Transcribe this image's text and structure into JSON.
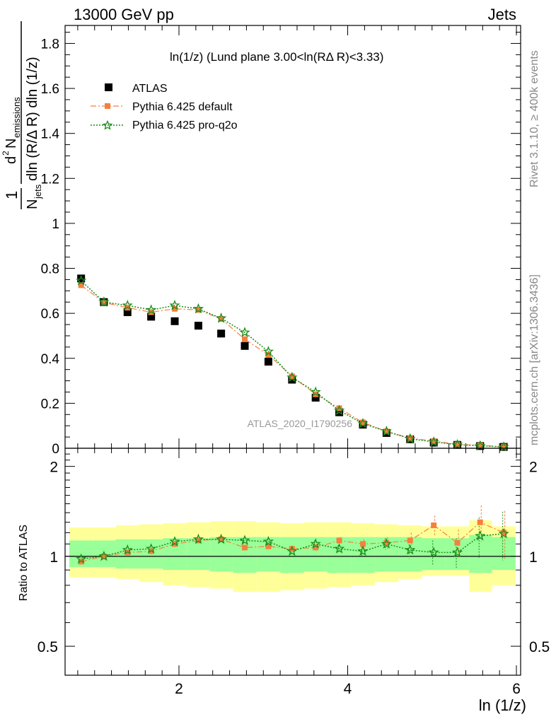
{
  "header": {
    "left": "13000 GeV pp",
    "right": "Jets"
  },
  "side_labels": {
    "rivet": "Rivet 3.1.10, ≥ 400k events",
    "mcplots": "mcplots.cern.ch [arXiv:1306.3436]"
  },
  "main_title": "ln(1/z) (Lund plane 3.00<ln(RΔ R)<3.33)",
  "watermark": "ATLAS_2020_I1790256",
  "ylabel_main": "1/N_jets d²N_emissions / dln(R/ΔR) dln(1/z)",
  "ylabel_ratio": "Ratio to ATLAS",
  "xlabel": "ln (1/z)",
  "legend": {
    "atlas": "ATLAS",
    "default": "Pythia 6.425 default",
    "proq2o": "Pythia 6.425 pro-q2o"
  },
  "colors": {
    "data": "#000000",
    "default": "#f5803e",
    "proq2o": "#1a8c1a",
    "band_inner": "#99ff99",
    "band_outer": "#ffff99"
  },
  "chart_data": [
    {
      "type": "scatter",
      "panel": "main",
      "title": "ln(1/z) (Lund plane 3.00<ln(RΔ R)<3.33)",
      "xlabel": "",
      "ylabel": "1/N_jets d²N_emissions / dln(R/ΔR) dln(1/z)",
      "xlim": [
        0.65,
        6.05
      ],
      "ylim": [
        0,
        1.88
      ],
      "x_ticks": [
        2,
        4,
        6
      ],
      "y_ticks": [
        0,
        0.2,
        0.4,
        0.6,
        0.8,
        1,
        1.2,
        1.4,
        1.6,
        1.8
      ],
      "y_tick_labels": [
        "0",
        "0.2",
        "0.4",
        "0.6",
        "0.8",
        "1",
        "1.2",
        "1.4",
        "1.6",
        "1.8"
      ],
      "x": [
        0.84,
        1.11,
        1.39,
        1.67,
        1.95,
        2.23,
        2.5,
        2.78,
        3.06,
        3.34,
        3.62,
        3.9,
        4.18,
        4.46,
        4.74,
        5.02,
        5.3,
        5.57,
        5.85
      ],
      "series": [
        {
          "name": "ATLAS",
          "marker": "square",
          "values": [
            0.755,
            0.65,
            0.605,
            0.585,
            0.565,
            0.545,
            0.51,
            0.455,
            0.385,
            0.305,
            0.225,
            0.16,
            0.105,
            0.068,
            0.04,
            0.025,
            0.015,
            0.01,
            0.006
          ]
        },
        {
          "name": "Pythia 6.425 default",
          "marker": "filled-square",
          "values": [
            0.725,
            0.648,
            0.625,
            0.605,
            0.62,
            0.615,
            0.575,
            0.485,
            0.415,
            0.32,
            0.24,
            0.178,
            0.115,
            0.075,
            0.045,
            0.032,
            0.017,
            0.013,
            0.007
          ]
        },
        {
          "name": "Pythia 6.425 pro-q2o",
          "marker": "open-star",
          "values": [
            0.745,
            0.65,
            0.635,
            0.615,
            0.635,
            0.62,
            0.578,
            0.515,
            0.43,
            0.315,
            0.25,
            0.168,
            0.11,
            0.075,
            0.042,
            0.028,
            0.016,
            0.011,
            0.006
          ]
        }
      ]
    },
    {
      "type": "scatter",
      "panel": "ratio",
      "ylabel": "Ratio to ATLAS",
      "xlabel": "ln (1/z)",
      "xlim": [
        0.65,
        6.05
      ],
      "ylim": [
        0.4,
        2.3
      ],
      "log_y": true,
      "y_ticks": [
        0.5,
        1,
        2
      ],
      "y_tick_labels": [
        "0.5",
        "1",
        "2"
      ],
      "x_ticks": [
        2,
        4,
        6
      ],
      "x_tick_labels": [
        "2",
        "4",
        "6"
      ],
      "bin_edges": [
        0.7,
        0.98,
        1.25,
        1.53,
        1.81,
        2.09,
        2.37,
        2.64,
        2.92,
        3.2,
        3.48,
        3.76,
        4.04,
        4.32,
        4.6,
        4.88,
        5.16,
        5.44,
        5.71,
        5.99
      ],
      "band_inner_lo": [
        0.92,
        0.92,
        0.91,
        0.91,
        0.9,
        0.9,
        0.89,
        0.88,
        0.89,
        0.88,
        0.89,
        0.88,
        0.88,
        0.89,
        0.89,
        0.9,
        0.9,
        0.88,
        0.9
      ],
      "band_inner_hi": [
        1.13,
        1.13,
        1.14,
        1.14,
        1.15,
        1.15,
        1.16,
        1.16,
        1.16,
        1.16,
        1.16,
        1.16,
        1.16,
        1.16,
        1.16,
        1.15,
        1.15,
        1.18,
        1.16
      ],
      "band_outer_lo": [
        0.85,
        0.85,
        0.84,
        0.82,
        0.8,
        0.79,
        0.78,
        0.76,
        0.76,
        0.77,
        0.78,
        0.79,
        0.8,
        0.82,
        0.84,
        0.86,
        0.86,
        0.76,
        0.8
      ],
      "band_outer_hi": [
        1.25,
        1.25,
        1.27,
        1.28,
        1.29,
        1.3,
        1.31,
        1.31,
        1.3,
        1.29,
        1.3,
        1.3,
        1.29,
        1.28,
        1.27,
        1.26,
        1.26,
        1.32,
        1.26
      ],
      "x": [
        0.84,
        1.11,
        1.39,
        1.67,
        1.95,
        2.23,
        2.5,
        2.78,
        3.06,
        3.34,
        3.62,
        3.9,
        4.18,
        4.46,
        4.74,
        5.02,
        5.3,
        5.57,
        5.85
      ],
      "series": [
        {
          "name": "Pythia 6.425 default",
          "marker": "filled-square",
          "values": [
            0.96,
            1.0,
            1.03,
            1.04,
            1.1,
            1.13,
            1.14,
            1.07,
            1.08,
            1.06,
            1.07,
            1.13,
            1.1,
            1.11,
            1.13,
            1.27,
            1.11,
            1.3,
            1.2
          ],
          "err": [
            0.02,
            0.02,
            0.02,
            0.02,
            0.02,
            0.02,
            0.02,
            0.02,
            0.02,
            0.02,
            0.03,
            0.03,
            0.04,
            0.05,
            0.07,
            0.1,
            0.12,
            0.18,
            0.22
          ]
        },
        {
          "name": "Pythia 6.425 pro-q2o",
          "marker": "open-star",
          "values": [
            0.98,
            1.0,
            1.05,
            1.06,
            1.12,
            1.14,
            1.14,
            1.13,
            1.12,
            1.04,
            1.1,
            1.06,
            1.04,
            1.1,
            1.05,
            1.03,
            1.03,
            1.17,
            1.19
          ],
          "err": [
            0.02,
            0.02,
            0.02,
            0.02,
            0.02,
            0.02,
            0.02,
            0.02,
            0.02,
            0.02,
            0.03,
            0.03,
            0.04,
            0.05,
            0.07,
            0.1,
            0.12,
            0.18,
            0.22
          ]
        }
      ]
    }
  ]
}
